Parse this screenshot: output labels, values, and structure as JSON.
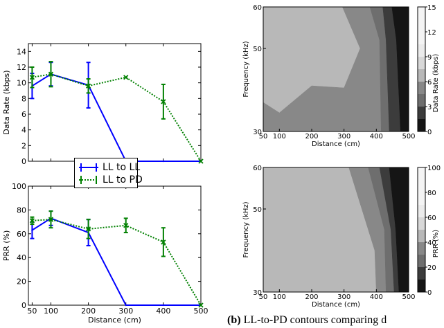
{
  "chart_data": [
    {
      "id": "data_rate",
      "type": "line",
      "title": "",
      "xlabel": "",
      "ylabel": "Data Rate (kbps)",
      "xlim": [
        40,
        500
      ],
      "ylim": [
        0,
        15
      ],
      "xticks": [
        50,
        100,
        200,
        300,
        400,
        500
      ],
      "xtick_labels": [],
      "yticks": [
        0,
        2,
        4,
        6,
        8,
        10,
        12,
        14
      ],
      "ytick_labels": [
        "0",
        "2",
        "4",
        "6",
        "8",
        "10",
        "12",
        "14"
      ],
      "series": [
        {
          "name": "LL to LL",
          "color": "#0000ff",
          "style": "solid",
          "marker": "errorbar",
          "x": [
            50,
            100,
            200,
            300,
            400,
            500
          ],
          "y": [
            9.6,
            11.1,
            9.7,
            0,
            0,
            0
          ],
          "err": [
            1.6,
            1.5,
            2.9,
            0,
            0,
            0
          ]
        },
        {
          "name": "LL to PD",
          "color": "#008000",
          "style": "dotted",
          "marker": "x",
          "x": [
            50,
            100,
            200,
            300,
            400,
            500
          ],
          "y": [
            10.7,
            11.1,
            9.6,
            10.7,
            7.6,
            0
          ],
          "err": [
            1.3,
            1.6,
            0.9,
            0,
            2.2,
            0
          ]
        }
      ],
      "legend": {
        "placement": "bottom-center",
        "entries": [
          "LL to LL",
          "LL to PD"
        ]
      }
    },
    {
      "id": "prr",
      "type": "line",
      "title": "",
      "xlabel": "Distance (cm)",
      "ylabel": "PRR (%)",
      "xlim": [
        40,
        500
      ],
      "ylim": [
        0,
        100
      ],
      "xticks": [
        50,
        100,
        200,
        300,
        400,
        500
      ],
      "xtick_labels": [
        "50",
        "100",
        "200",
        "300",
        "400",
        "500"
      ],
      "yticks": [
        0,
        20,
        40,
        60,
        80,
        100
      ],
      "ytick_labels": [
        "0",
        "20",
        "40",
        "60",
        "80",
        "100"
      ],
      "series": [
        {
          "name": "LL to LL",
          "color": "#0000ff",
          "style": "solid",
          "marker": "errorbar",
          "x": [
            50,
            100,
            200,
            300,
            400,
            500
          ],
          "y": [
            63,
            73,
            61,
            0,
            0,
            0
          ],
          "err": [
            7,
            6,
            11,
            0,
            0,
            0
          ]
        },
        {
          "name": "LL to PD",
          "color": "#008000",
          "style": "dotted",
          "marker": "x",
          "x": [
            50,
            100,
            200,
            300,
            400,
            500
          ],
          "y": [
            71,
            72,
            64,
            67,
            53,
            0
          ],
          "err": [
            3,
            7,
            8,
            6,
            12,
            0
          ]
        }
      ]
    },
    {
      "id": "contour_rate",
      "type": "heatmap",
      "title": "",
      "xlabel": "Distance (cm)",
      "ylabel": "Frequency (kHz)",
      "xlim": [
        50,
        500
      ],
      "ylim": [
        30,
        60
      ],
      "xticks": [
        50,
        100,
        200,
        300,
        400,
        500
      ],
      "xtick_labels": [
        "50",
        "100",
        "200",
        "300",
        "400",
        "500"
      ],
      "yticks": [
        30,
        50,
        60
      ],
      "ytick_labels": [
        "30",
        "50",
        "60"
      ],
      "colorbar": {
        "label": "Data Rate (kbps)",
        "min": 0,
        "max": 15,
        "ticks": [
          "0",
          "3",
          "6",
          "9",
          "12",
          "15"
        ]
      },
      "levels": [
        {
          "min": 9,
          "max": 12,
          "color": "#b8b8b8",
          "boundary": [
            [
              50,
              60
            ],
            [
              295,
              60
            ],
            [
              350,
              50
            ],
            [
              300,
              40.5
            ],
            [
              200,
              41
            ],
            [
              100,
              34.5
            ],
            [
              50,
              37
            ],
            [
              50,
              60
            ]
          ]
        },
        {
          "min": 6,
          "max": 9,
          "color": "#888888",
          "boundary": [
            [
              295,
              60
            ],
            [
              380,
              60
            ],
            [
              410,
              52
            ],
            [
              415,
              30
            ],
            [
              50,
              30
            ],
            [
              50,
              37
            ],
            [
              100,
              34.5
            ],
            [
              200,
              41
            ],
            [
              300,
              40.5
            ],
            [
              350,
              50
            ],
            [
              295,
              60
            ]
          ]
        },
        {
          "min": 3,
          "max": 6,
          "color": "#6e6e6e",
          "boundary": [
            [
              380,
              60
            ],
            [
              420,
              60
            ],
            [
              430,
              52
            ],
            [
              440,
              30
            ],
            [
              415,
              30
            ],
            [
              410,
              52
            ],
            [
              380,
              60
            ]
          ]
        },
        {
          "min": 1.5,
          "max": 3,
          "color": "#3c3c3c",
          "boundary": [
            [
              420,
              60
            ],
            [
              448,
              60
            ],
            [
              462,
              52
            ],
            [
              475,
              30
            ],
            [
              440,
              30
            ],
            [
              430,
              52
            ],
            [
              420,
              60
            ]
          ]
        },
        {
          "min": 0,
          "max": 1.5,
          "color": "#151515",
          "boundary": [
            [
              448,
              60
            ],
            [
              500,
              60
            ],
            [
              500,
              30
            ],
            [
              475,
              30
            ],
            [
              462,
              52
            ],
            [
              448,
              60
            ]
          ]
        }
      ]
    },
    {
      "id": "contour_prr",
      "type": "heatmap",
      "title": "",
      "xlabel": "Distance (cm)",
      "ylabel": "Frequency (kHz)",
      "xlim": [
        50,
        500
      ],
      "ylim": [
        30,
        60
      ],
      "xticks": [
        50,
        100,
        200,
        300,
        400,
        500
      ],
      "xtick_labels": [
        "50",
        "100",
        "200",
        "300",
        "400",
        "500"
      ],
      "yticks": [
        30,
        50,
        60
      ],
      "ytick_labels": [
        "30",
        "50",
        "60"
      ],
      "colorbar": {
        "label": "PRR (%)",
        "min": 0,
        "max": 100,
        "ticks": [
          "0",
          "20",
          "40",
          "60",
          "80",
          "100"
        ]
      },
      "levels": [
        {
          "min": 60,
          "max": 80,
          "color": "#b8b8b8",
          "boundary": [
            [
              50,
              60
            ],
            [
              315,
              60
            ],
            [
              395,
              40
            ],
            [
              400,
              30
            ],
            [
              50,
              30
            ],
            [
              50,
              60
            ]
          ]
        },
        {
          "min": 40,
          "max": 60,
          "color": "#888888",
          "boundary": [
            [
              315,
              60
            ],
            [
              375,
              60
            ],
            [
              425,
              45
            ],
            [
              430,
              30
            ],
            [
              400,
              30
            ],
            [
              395,
              40
            ],
            [
              315,
              60
            ]
          ]
        },
        {
          "min": 20,
          "max": 40,
          "color": "#6e6e6e",
          "boundary": [
            [
              375,
              60
            ],
            [
              410,
              60
            ],
            [
              445,
              45
            ],
            [
              455,
              30
            ],
            [
              430,
              30
            ],
            [
              425,
              45
            ],
            [
              375,
              60
            ]
          ]
        },
        {
          "min": 10,
          "max": 20,
          "color": "#3c3c3c",
          "boundary": [
            [
              410,
              60
            ],
            [
              440,
              60
            ],
            [
              460,
              45
            ],
            [
              470,
              30
            ],
            [
              455,
              30
            ],
            [
              445,
              45
            ],
            [
              410,
              60
            ]
          ]
        },
        {
          "min": 0,
          "max": 10,
          "color": "#151515",
          "boundary": [
            [
              440,
              60
            ],
            [
              500,
              60
            ],
            [
              500,
              30
            ],
            [
              470,
              30
            ],
            [
              460,
              45
            ],
            [
              440,
              60
            ]
          ]
        }
      ]
    }
  ],
  "legend": {
    "entries": [
      {
        "label": "LL to LL",
        "color": "#0000ff",
        "style": "solid"
      },
      {
        "label": "LL to PD",
        "color": "#008000",
        "style": "dotted"
      }
    ]
  },
  "caption": {
    "label": "(b)",
    "text": "LL-to-PD contours comparing d"
  }
}
